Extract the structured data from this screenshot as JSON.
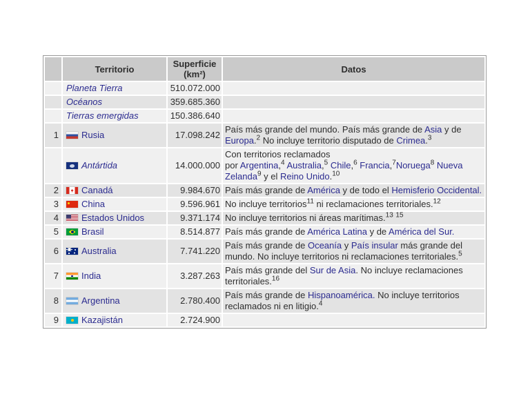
{
  "colors": {
    "link": "#2b2b8f",
    "text": "#2e2e2e",
    "header_bg": "#cacaca",
    "row_light": "#f0f0f0",
    "row_dark": "#e3e3e3",
    "table_border": "#9a9a9a",
    "page_bg": "#ffffff"
  },
  "table": {
    "headers": {
      "rank": "",
      "territory": "Territorio",
      "area_line1": "Superficie",
      "area_line2": "(km²)",
      "datos": "Datos"
    },
    "rows": [
      {
        "rank": "",
        "flag": null,
        "italic": true,
        "territory": "Planeta Tierra",
        "area": "510.072.000",
        "datos": []
      },
      {
        "rank": "",
        "flag": null,
        "italic": true,
        "territory": "Océanos",
        "area": "359.685.360",
        "datos": []
      },
      {
        "rank": "",
        "flag": null,
        "italic": true,
        "territory": "Tierras emergidas",
        "area": "150.386.640",
        "datos": []
      },
      {
        "rank": "1",
        "flag": "russia",
        "italic": false,
        "territory": "Rusia",
        "area": "17.098.242",
        "datos": [
          {
            "t": "País más grande del mundo. País más grande de "
          },
          {
            "t": "Asia",
            "k": "link"
          },
          {
            "t": " y de "
          },
          {
            "t": "Europa",
            "k": "link"
          },
          {
            "t": "."
          },
          {
            "t": "2",
            "k": "sup"
          },
          {
            "t": " No incluye territorio disputado de "
          },
          {
            "t": "Crimea",
            "k": "link"
          },
          {
            "t": "."
          },
          {
            "t": "3",
            "k": "sup"
          }
        ]
      },
      {
        "rank": "",
        "flag": "antarctica",
        "italic": true,
        "territory": "Antártida",
        "area": "14.000.000",
        "datos": [
          {
            "t": "Con territorios reclamados"
          },
          {
            "k": "br"
          },
          {
            "t": "por "
          },
          {
            "t": "Argentina",
            "k": "link"
          },
          {
            "t": ","
          },
          {
            "t": "4",
            "k": "sup"
          },
          {
            "t": " "
          },
          {
            "t": "Australia",
            "k": "link"
          },
          {
            "t": ","
          },
          {
            "t": "5",
            "k": "sup"
          },
          {
            "t": " "
          },
          {
            "t": "Chile",
            "k": "link"
          },
          {
            "t": ","
          },
          {
            "t": "6",
            "k": "sup"
          },
          {
            "t": " "
          },
          {
            "t": "Francia",
            "k": "link"
          },
          {
            "t": ","
          },
          {
            "t": "7",
            "k": "sup"
          },
          {
            "t": "Noruega",
            "k": "link"
          },
          {
            "t": "8",
            "k": "sup"
          },
          {
            "t": " "
          },
          {
            "t": "Nueva Zelanda",
            "k": "link"
          },
          {
            "t": "9",
            "k": "sup"
          },
          {
            "t": " y el "
          },
          {
            "t": "Reino Unido",
            "k": "link"
          },
          {
            "t": "."
          },
          {
            "t": "10",
            "k": "sup"
          }
        ]
      },
      {
        "rank": "2",
        "flag": "canada",
        "italic": false,
        "territory": "Canadá",
        "area": "9.984.670",
        "datos": [
          {
            "t": "País más grande de "
          },
          {
            "t": "América",
            "k": "link"
          },
          {
            "t": " y de todo el "
          },
          {
            "t": "Hemisferio Occidental.",
            "k": "link"
          }
        ]
      },
      {
        "rank": "3",
        "flag": "china",
        "italic": false,
        "territory": "China",
        "area": "9.596.961",
        "datos": [
          {
            "t": "No incluye territorios"
          },
          {
            "t": "11",
            "k": "sup"
          },
          {
            "t": " ni reclamaciones territoriales."
          },
          {
            "t": "12",
            "k": "sup"
          }
        ]
      },
      {
        "rank": "4",
        "flag": "usa",
        "italic": false,
        "territory": "Estados Unidos",
        "area": "9.371.174",
        "datos": [
          {
            "t": "No incluye territorios ni áreas marítimas."
          },
          {
            "t": "13",
            "k": "sup"
          },
          {
            "t": " "
          },
          {
            "t": "15",
            "k": "sup"
          }
        ]
      },
      {
        "rank": "5",
        "flag": "brazil",
        "italic": false,
        "territory": "Brasil",
        "area": "8.514.877",
        "datos": [
          {
            "t": "País más grande de "
          },
          {
            "t": "América Latina",
            "k": "link"
          },
          {
            "t": " y de "
          },
          {
            "t": "América del Sur.",
            "k": "link"
          }
        ]
      },
      {
        "rank": "6",
        "flag": "australia",
        "italic": false,
        "territory": "Australia",
        "area": "7.741.220",
        "datos": [
          {
            "t": "País más grande de "
          },
          {
            "t": "Oceanía",
            "k": "link"
          },
          {
            "t": " y "
          },
          {
            "t": "País insular",
            "k": "link"
          },
          {
            "t": " más grande del mundo. No incluye territorios ni reclamaciones territoriales."
          },
          {
            "t": "5",
            "k": "sup"
          }
        ]
      },
      {
        "rank": "7",
        "flag": "india",
        "italic": false,
        "territory": "India",
        "area": "3.287.263",
        "datos": [
          {
            "t": "País más grande del "
          },
          {
            "t": "Sur de Asia",
            "k": "link"
          },
          {
            "t": ". No incluye reclamaciones territoriales."
          },
          {
            "t": "16",
            "k": "sup"
          }
        ]
      },
      {
        "rank": "8",
        "flag": "argentina",
        "italic": false,
        "territory": "Argentina",
        "area": "2.780.400",
        "datos": [
          {
            "t": "País más grande de "
          },
          {
            "t": "Hispanoamérica.",
            "k": "link"
          },
          {
            "t": " No incluye territorios reclamados ni en litigio."
          },
          {
            "t": "4",
            "k": "sup"
          }
        ]
      },
      {
        "rank": "9",
        "flag": "kazakhstan",
        "italic": false,
        "territory": "Kazajistán",
        "area": "2.724.900",
        "datos": []
      }
    ]
  }
}
